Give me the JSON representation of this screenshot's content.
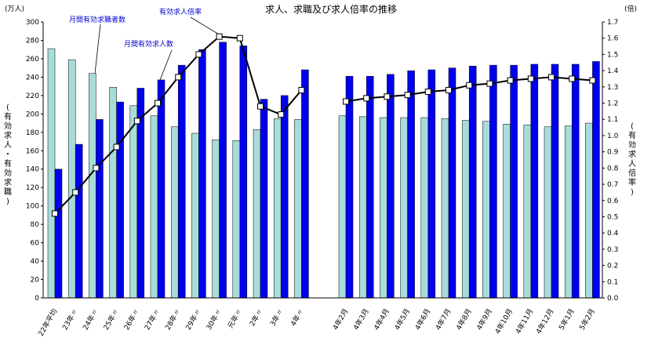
{
  "chart_data": {
    "type": "bar",
    "title": "求人、求職及び求人倍率の推移",
    "y_left_unit": "(万人)",
    "y_right_unit": "(倍)",
    "y_left_label": "(有効求人・有効求職)",
    "y_right_label": "(有効求人倍率)",
    "y_left_lim": [
      0,
      300
    ],
    "y_right_lim": [
      0,
      1.7
    ],
    "y_left_ticks": [
      "0",
      "20",
      "40",
      "60",
      "80",
      "100",
      "120",
      "140",
      "160",
      "180",
      "200",
      "220",
      "240",
      "260",
      "280",
      "300"
    ],
    "y_right_ticks": [
      "0.0",
      "0.1",
      "0.2",
      "0.3",
      "0.4",
      "0.5",
      "0.6",
      "0.7",
      "0.8",
      "0.9",
      "1.0",
      "1.1",
      "1.2",
      "1.3",
      "1.4",
      "1.5",
      "1.6",
      "1.7"
    ],
    "categories_annual": [
      "22年平均",
      "23年〃",
      "24年〃",
      "25年〃",
      "26年〃",
      "27年〃",
      "28年〃",
      "29年〃",
      "30年〃",
      "元年〃",
      "2年〃",
      "3年〃",
      "4年〃"
    ],
    "categories_monthly": [
      "4年2月",
      "4年3月",
      "4年4月",
      "4年5月",
      "4年6月",
      "4年7月",
      "4年8月",
      "4年9月",
      "4年10月",
      "4年11月",
      "4年12月",
      "5年1月",
      "5年2月"
    ],
    "series": [
      {
        "name": "月間有効求職者数",
        "color": "#a8dcd9",
        "annual": [
          271,
          259,
          244,
          229,
          209,
          198,
          186,
          179,
          172,
          171,
          183,
          195,
          194
        ],
        "monthly": [
          198,
          197,
          196,
          196,
          196,
          195,
          193,
          192,
          189,
          188,
          186,
          187,
          190
        ]
      },
      {
        "name": "月間有効求人数",
        "color": "#0000ee",
        "annual": [
          140,
          167,
          194,
          213,
          228,
          237,
          253,
          270,
          278,
          274,
          216,
          220,
          248
        ],
        "monthly": [
          241,
          241,
          243,
          247,
          248,
          250,
          252,
          253,
          253,
          254,
          254,
          254,
          257
        ]
      },
      {
        "name": "有効求人倍率",
        "color": "#000000",
        "annual": [
          0.52,
          0.65,
          0.8,
          0.93,
          1.09,
          1.2,
          1.36,
          1.5,
          1.61,
          1.6,
          1.18,
          1.13,
          1.28
        ],
        "monthly": [
          1.21,
          1.23,
          1.24,
          1.25,
          1.27,
          1.28,
          1.31,
          1.32,
          1.34,
          1.35,
          1.36,
          1.35,
          1.34
        ]
      }
    ],
    "annotations": [
      "月間有効求職者数",
      "月間有効求人数",
      "有効求人倍率"
    ]
  }
}
